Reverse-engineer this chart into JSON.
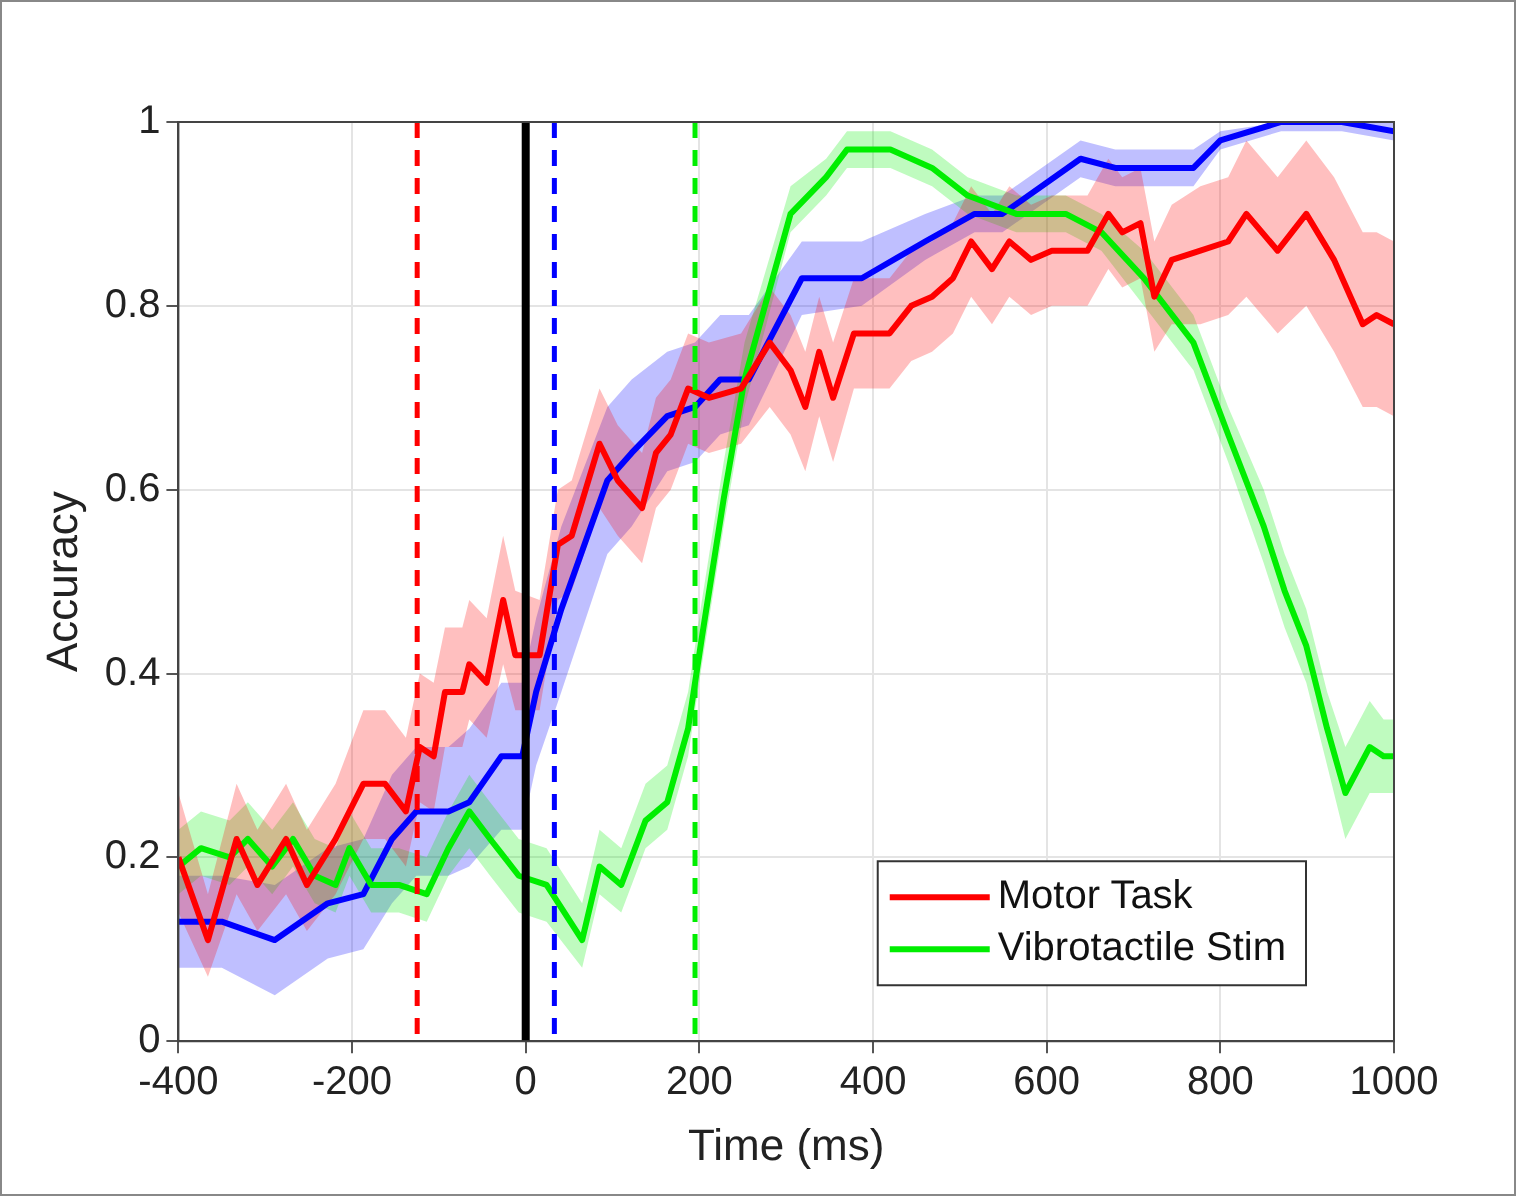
{
  "chart_data": {
    "type": "line",
    "xlabel": "Time (ms)",
    "ylabel": "Accuracy",
    "xlim": [
      -400,
      1000
    ],
    "ylim": [
      0,
      1
    ],
    "xticks": [
      -400,
      -200,
      0,
      200,
      400,
      600,
      800,
      1000
    ],
    "yticks": [
      0,
      0.2,
      0.4,
      0.6,
      0.8,
      1
    ],
    "grid": true,
    "legend": "bottom right",
    "marker": "none",
    "line_style": "solid",
    "ref_lines": [
      {
        "axis": "x",
        "value": -125,
        "color": "#ff0000",
        "line_style": "dashed"
      },
      {
        "axis": "x",
        "value": 33,
        "color": "#0000ff",
        "line_style": "dashed"
      },
      {
        "axis": "x",
        "value": 195,
        "color": "#00ee00",
        "line_style": "dashed"
      },
      {
        "axis": "x",
        "value": 0,
        "color": "#000000",
        "line_style": "solid"
      }
    ],
    "series": [
      {
        "name": "Motor Task",
        "color": "#ff0000",
        "x": [
          -400,
          -366,
          -333,
          -309,
          -276,
          -252,
          -219,
          -187,
          -162,
          -138,
          -122,
          -106,
          -93,
          -73,
          -65,
          -45,
          -26,
          -12,
          16,
          37,
          53,
          85,
          106,
          134,
          150,
          167,
          187,
          211,
          248,
          281,
          305,
          322,
          338,
          354,
          378,
          419,
          444,
          468,
          492,
          513,
          537,
          557,
          582,
          606,
          647,
          671,
          687,
          708,
          724,
          744,
          777,
          809,
          830,
          866,
          899,
          931,
          964,
          980,
          1000
        ],
        "values": [
          0.2,
          0.11,
          0.22,
          0.17,
          0.22,
          0.17,
          0.22,
          0.28,
          0.28,
          0.25,
          0.32,
          0.31,
          0.38,
          0.38,
          0.41,
          0.39,
          0.48,
          0.42,
          0.42,
          0.54,
          0.55,
          0.65,
          0.61,
          0.58,
          0.64,
          0.66,
          0.71,
          0.7,
          0.71,
          0.76,
          0.73,
          0.69,
          0.75,
          0.7,
          0.77,
          0.77,
          0.8,
          0.81,
          0.83,
          0.87,
          0.84,
          0.87,
          0.85,
          0.86,
          0.86,
          0.9,
          0.88,
          0.89,
          0.81,
          0.85,
          0.86,
          0.87,
          0.9,
          0.86,
          0.9,
          0.85,
          0.78,
          0.79,
          0.78
        ],
        "lower": [
          0.14,
          0.07,
          0.16,
          0.12,
          0.16,
          0.12,
          0.16,
          0.22,
          0.22,
          0.19,
          0.26,
          0.25,
          0.32,
          0.32,
          0.35,
          0.33,
          0.41,
          0.36,
          0.36,
          0.48,
          0.49,
          0.58,
          0.55,
          0.52,
          0.58,
          0.6,
          0.65,
          0.64,
          0.65,
          0.69,
          0.66,
          0.62,
          0.68,
          0.63,
          0.71,
          0.71,
          0.74,
          0.75,
          0.77,
          0.81,
          0.78,
          0.81,
          0.79,
          0.8,
          0.8,
          0.84,
          0.82,
          0.83,
          0.75,
          0.78,
          0.78,
          0.79,
          0.81,
          0.77,
          0.8,
          0.75,
          0.69,
          0.69,
          0.68
        ],
        "upper": [
          0.27,
          0.16,
          0.28,
          0.23,
          0.28,
          0.23,
          0.28,
          0.36,
          0.36,
          0.33,
          0.4,
          0.39,
          0.45,
          0.45,
          0.48,
          0.46,
          0.55,
          0.49,
          0.48,
          0.6,
          0.61,
          0.71,
          0.67,
          0.64,
          0.7,
          0.72,
          0.77,
          0.76,
          0.77,
          0.82,
          0.79,
          0.75,
          0.81,
          0.76,
          0.83,
          0.83,
          0.86,
          0.87,
          0.89,
          0.93,
          0.9,
          0.93,
          0.91,
          0.92,
          0.92,
          0.96,
          0.94,
          0.95,
          0.87,
          0.91,
          0.93,
          0.94,
          0.98,
          0.94,
          0.98,
          0.94,
          0.88,
          0.88,
          0.87
        ]
      },
      {
        "name": "Vibrotactile Stim",
        "color": "#00ee00",
        "x": [
          -400,
          -374,
          -341,
          -320,
          -292,
          -268,
          -243,
          -219,
          -203,
          -178,
          -146,
          -114,
          -89,
          -65,
          -41,
          -8,
          24,
          65,
          85,
          110,
          138,
          163,
          187,
          203,
          228,
          252,
          305,
          346,
          370,
          420,
          468,
          509,
          565,
          622,
          663,
          712,
          769,
          809,
          850,
          874,
          899,
          923,
          944,
          972,
          988,
          1000
        ],
        "values": [
          0.19,
          0.21,
          0.2,
          0.22,
          0.19,
          0.22,
          0.18,
          0.17,
          0.21,
          0.17,
          0.17,
          0.16,
          0.21,
          0.25,
          0.22,
          0.18,
          0.17,
          0.11,
          0.19,
          0.17,
          0.24,
          0.26,
          0.34,
          0.44,
          0.59,
          0.72,
          0.9,
          0.94,
          0.97,
          0.97,
          0.95,
          0.92,
          0.9,
          0.9,
          0.88,
          0.83,
          0.76,
          0.66,
          0.56,
          0.49,
          0.43,
          0.34,
          0.27,
          0.32,
          0.31,
          0.31
        ],
        "lower": [
          0.16,
          0.18,
          0.17,
          0.19,
          0.16,
          0.19,
          0.15,
          0.14,
          0.18,
          0.14,
          0.14,
          0.13,
          0.18,
          0.21,
          0.18,
          0.14,
          0.13,
          0.08,
          0.16,
          0.14,
          0.21,
          0.23,
          0.31,
          0.41,
          0.56,
          0.69,
          0.88,
          0.92,
          0.95,
          0.95,
          0.93,
          0.9,
          0.88,
          0.88,
          0.86,
          0.8,
          0.73,
          0.63,
          0.52,
          0.45,
          0.39,
          0.3,
          0.22,
          0.27,
          0.27,
          0.27
        ],
        "upper": [
          0.23,
          0.25,
          0.24,
          0.26,
          0.23,
          0.26,
          0.22,
          0.21,
          0.25,
          0.21,
          0.21,
          0.2,
          0.25,
          0.29,
          0.26,
          0.22,
          0.21,
          0.15,
          0.23,
          0.21,
          0.28,
          0.3,
          0.38,
          0.48,
          0.63,
          0.76,
          0.93,
          0.96,
          0.99,
          0.99,
          0.97,
          0.94,
          0.92,
          0.92,
          0.9,
          0.86,
          0.79,
          0.69,
          0.6,
          0.53,
          0.47,
          0.38,
          0.32,
          0.37,
          0.35,
          0.35
        ]
      },
      {
        "color": "#0000ff",
        "x": [
          -400,
          -350,
          -289,
          -228,
          -187,
          -154,
          -126,
          -89,
          -65,
          -28,
          -4,
          12,
          41,
          94,
          122,
          163,
          195,
          224,
          257,
          318,
          387,
          460,
          517,
          549,
          639,
          679,
          769,
          800,
          870,
          940,
          1000
        ],
        "values": [
          0.13,
          0.13,
          0.11,
          0.15,
          0.16,
          0.22,
          0.25,
          0.25,
          0.26,
          0.31,
          0.31,
          0.38,
          0.47,
          0.61,
          0.64,
          0.68,
          0.69,
          0.72,
          0.72,
          0.83,
          0.83,
          0.87,
          0.9,
          0.9,
          0.96,
          0.95,
          0.95,
          0.98,
          1,
          1,
          0.99
        ],
        "lower": [
          0.08,
          0.08,
          0.05,
          0.09,
          0.1,
          0.15,
          0.18,
          0.18,
          0.19,
          0.23,
          0.23,
          0.3,
          0.38,
          0.53,
          0.56,
          0.62,
          0.63,
          0.66,
          0.67,
          0.79,
          0.8,
          0.85,
          0.88,
          0.88,
          0.94,
          0.93,
          0.93,
          0.97,
          0.99,
          0.99,
          0.98
        ],
        "upper": [
          0.18,
          0.18,
          0.17,
          0.21,
          0.22,
          0.29,
          0.32,
          0.32,
          0.34,
          0.39,
          0.39,
          0.46,
          0.56,
          0.69,
          0.72,
          0.75,
          0.76,
          0.79,
          0.79,
          0.87,
          0.87,
          0.9,
          0.92,
          0.92,
          0.98,
          0.97,
          0.97,
          0.99,
          1,
          1,
          1
        ]
      }
    ]
  }
}
